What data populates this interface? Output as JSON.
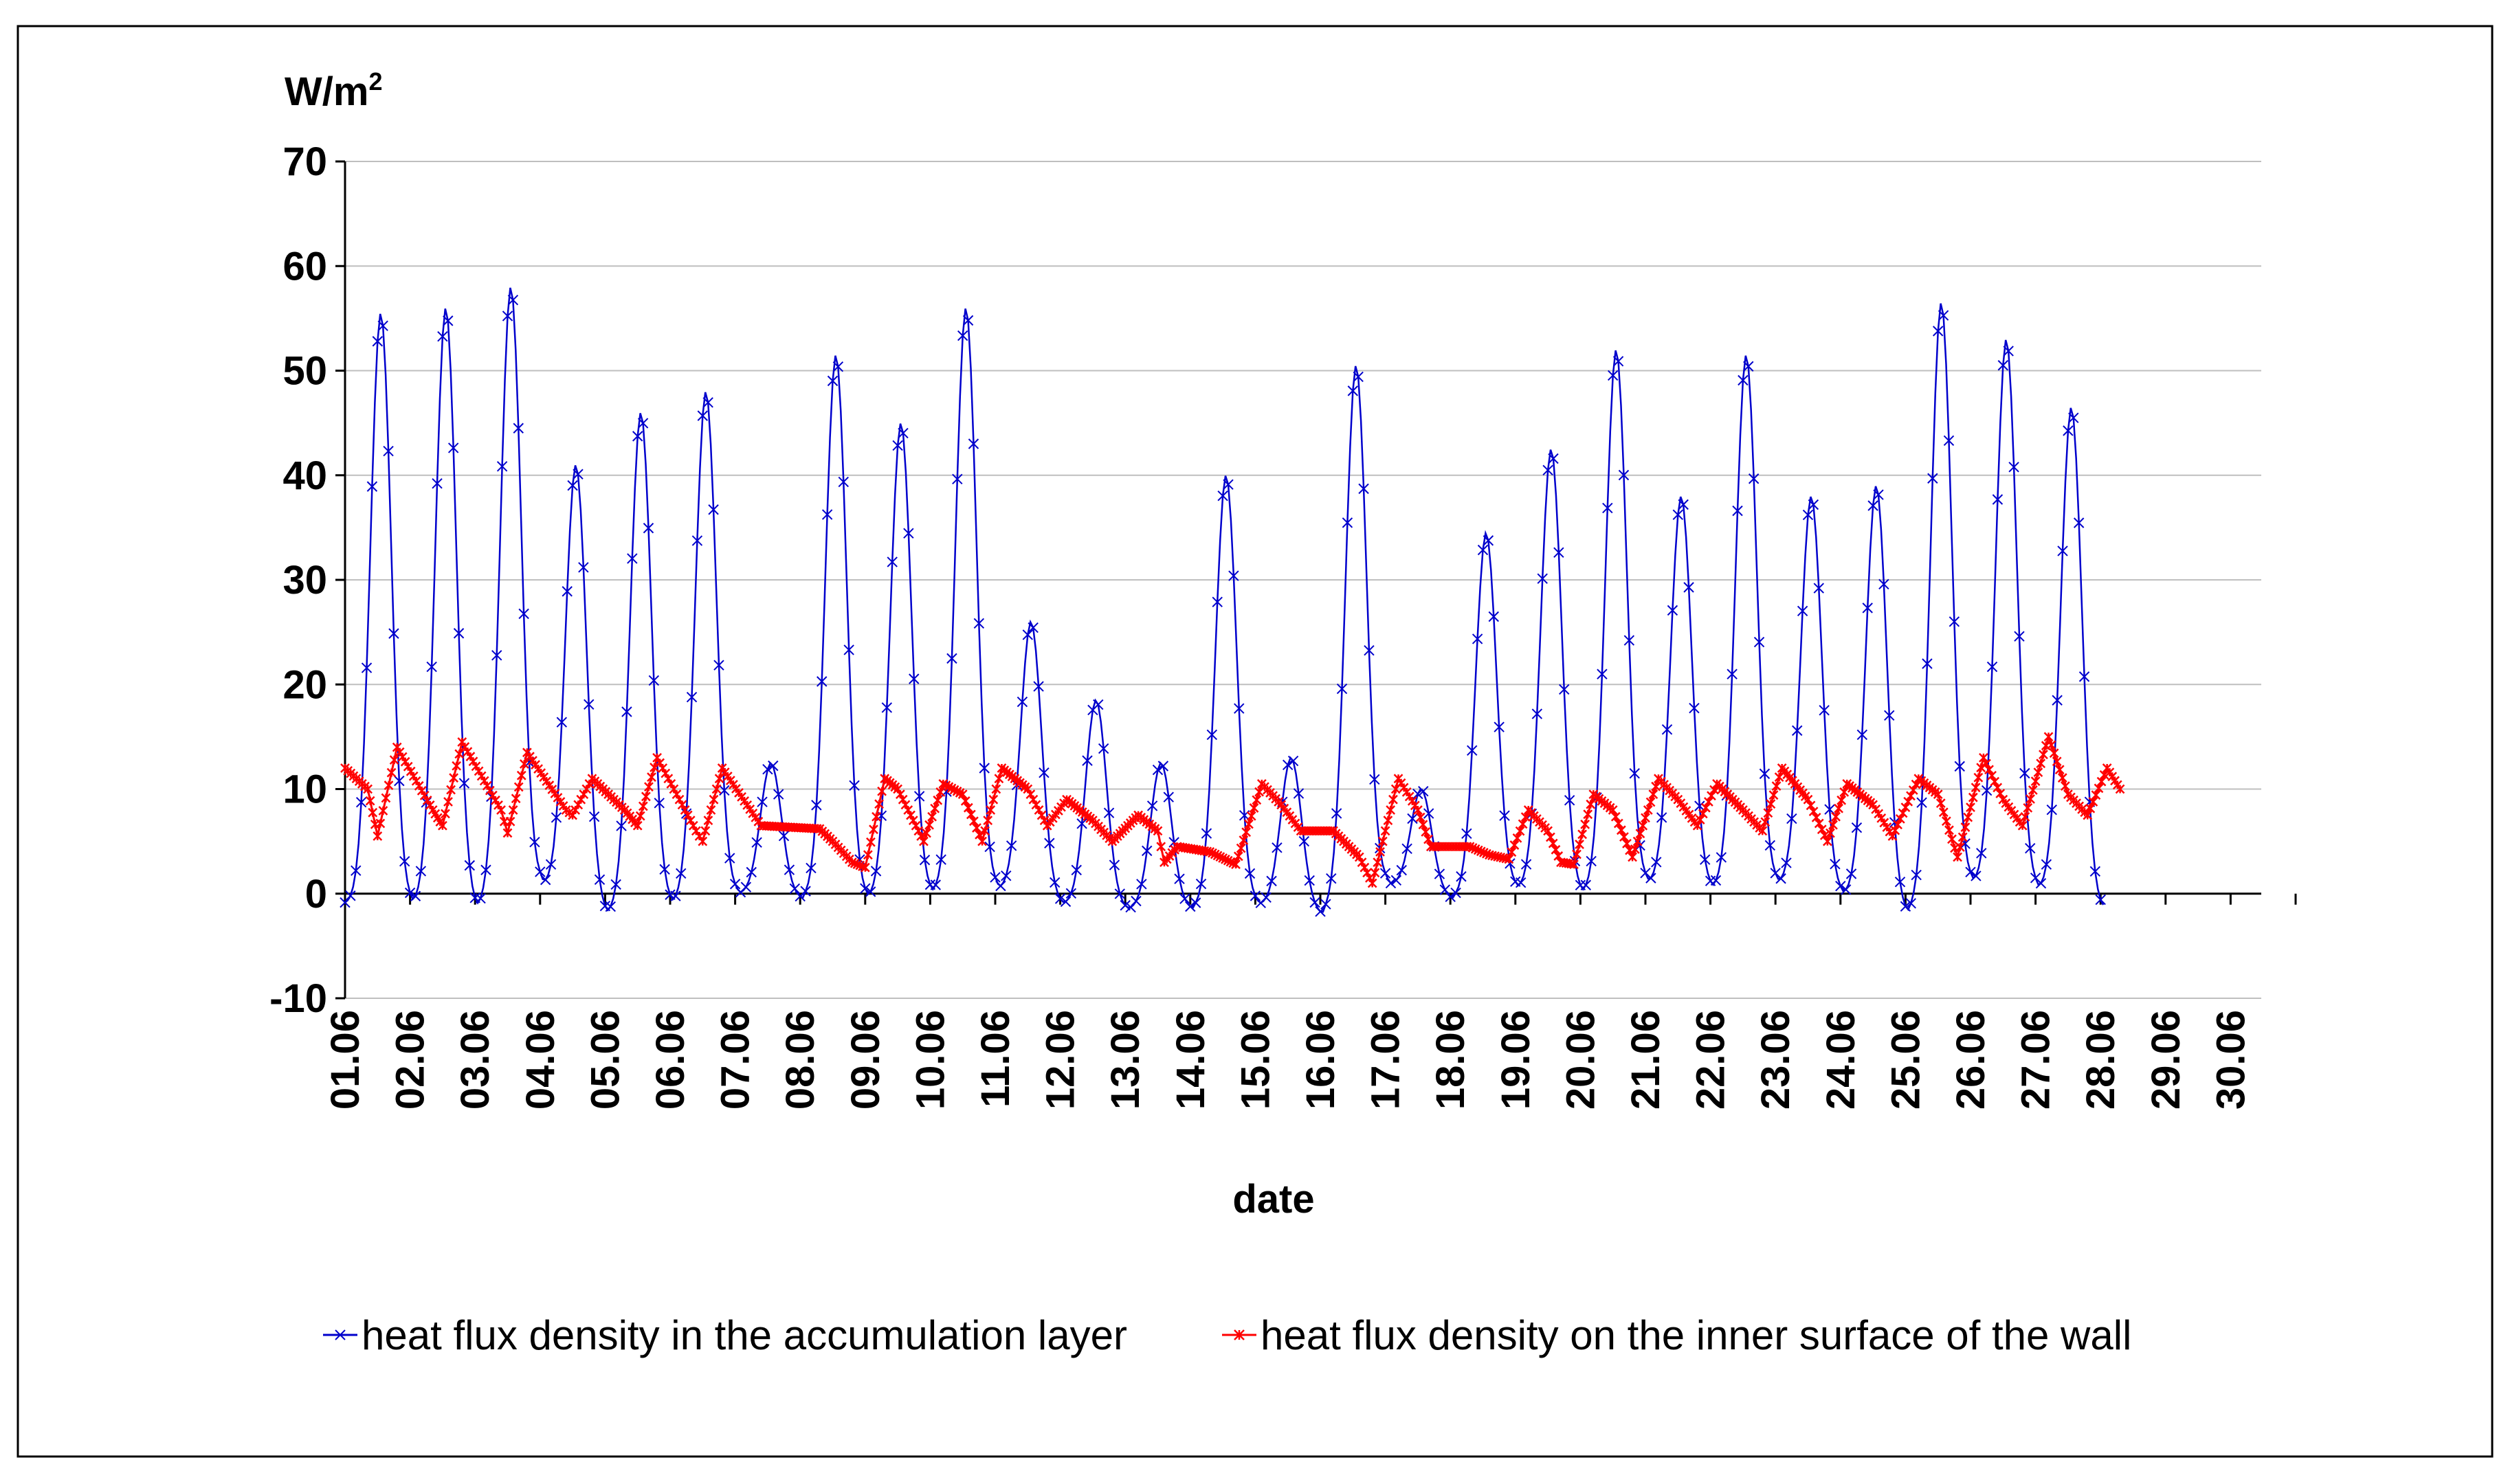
{
  "chart_data": {
    "type": "line",
    "y_unit_label": "W/m",
    "y_unit_superscript": "2",
    "xlabel": "date",
    "ylim": [
      -10,
      70
    ],
    "y_ticks": [
      70,
      60,
      50,
      40,
      30,
      20,
      10,
      0,
      -10
    ],
    "gridlines": "horizontal",
    "legend_position": "bottom",
    "categories": [
      "01.06",
      "02.06",
      "03.06",
      "04.06",
      "05.06",
      "06.06",
      "07.06",
      "08.06",
      "09.06",
      "10.06",
      "11.06",
      "12.06",
      "13.06",
      "14.06",
      "15.06",
      "16.06",
      "17.06",
      "18.06",
      "19.06",
      "20.06",
      "21.06",
      "22.06",
      "23.06",
      "24.06",
      "25.06",
      "26.06",
      "27.06",
      "28.06",
      "29.06",
      "30.06"
    ],
    "x_axis_end_day": 30,
    "series": [
      {
        "name": "heat flux density in the accumulation layer",
        "color": "#0000CC",
        "marker": "x",
        "daily_min": [
          -1,
          -1,
          -1.5,
          1,
          -2,
          -1,
          0,
          -0.5,
          -0.5,
          0,
          0.5,
          -1,
          -1.5,
          -1.5,
          -1,
          -2,
          1,
          -0.5,
          0.5,
          0,
          1,
          0.5,
          1,
          0,
          -2,
          1,
          0.5,
          -1.5
        ],
        "daily_peak": [
          55.5,
          56,
          58,
          41,
          46,
          48,
          12.5,
          51.5,
          45,
          56,
          26,
          18.5,
          12.5,
          40,
          13,
          50.5,
          10,
          34.5,
          42.5,
          52,
          38,
          51.5,
          38,
          39,
          56.5,
          53,
          46.5
        ],
        "peak_day_offset": 0.55
      },
      {
        "name": "heat flux density on the inner surface of the wall",
        "color": "#FF0000",
        "marker": "*",
        "points": [
          [
            0,
            12
          ],
          [
            0.35,
            10
          ],
          [
            0.5,
            5.5
          ],
          [
            0.8,
            14
          ],
          [
            1.35,
            8
          ],
          [
            1.5,
            6.5
          ],
          [
            1.8,
            14.5
          ],
          [
            2.4,
            8
          ],
          [
            2.5,
            5.8
          ],
          [
            2.8,
            13.5
          ],
          [
            3.4,
            8
          ],
          [
            3.5,
            7.5
          ],
          [
            3.8,
            11
          ],
          [
            4.3,
            8
          ],
          [
            4.5,
            6.5
          ],
          [
            4.8,
            13
          ],
          [
            5.4,
            6
          ],
          [
            5.5,
            5
          ],
          [
            5.8,
            12
          ],
          [
            6.4,
            6.5
          ],
          [
            7.3,
            6.2
          ],
          [
            7.5,
            5
          ],
          [
            7.8,
            3
          ],
          [
            8.0,
            2.5
          ],
          [
            8.3,
            11
          ],
          [
            8.5,
            10
          ],
          [
            8.9,
            5
          ],
          [
            9.2,
            10.5
          ],
          [
            9.5,
            9.5
          ],
          [
            9.8,
            5
          ],
          [
            10.1,
            12
          ],
          [
            10.5,
            10
          ],
          [
            10.8,
            6.5
          ],
          [
            11.1,
            9
          ],
          [
            11.5,
            7
          ],
          [
            11.8,
            5
          ],
          [
            12.2,
            7.5
          ],
          [
            12.5,
            6
          ],
          [
            12.6,
            3
          ],
          [
            12.8,
            4.5
          ],
          [
            13.3,
            4
          ],
          [
            13.7,
            2.8
          ],
          [
            14.1,
            10.5
          ],
          [
            14.4,
            8.5
          ],
          [
            14.7,
            6
          ],
          [
            15.2,
            6
          ],
          [
            15.6,
            3.5
          ],
          [
            15.8,
            1
          ],
          [
            16.2,
            11
          ],
          [
            16.5,
            8
          ],
          [
            16.7,
            4.5
          ],
          [
            17.3,
            4.5
          ],
          [
            17.6,
            3.7
          ],
          [
            17.9,
            3.3
          ],
          [
            18.2,
            8
          ],
          [
            18.5,
            6
          ],
          [
            18.7,
            3
          ],
          [
            18.9,
            2.8
          ],
          [
            19.2,
            9.5
          ],
          [
            19.5,
            8
          ],
          [
            19.8,
            3.5
          ],
          [
            20.2,
            11
          ],
          [
            20.5,
            9
          ],
          [
            20.8,
            6.5
          ],
          [
            21.1,
            10.5
          ],
          [
            21.5,
            8
          ],
          [
            21.8,
            6
          ],
          [
            22.1,
            12
          ],
          [
            22.5,
            9
          ],
          [
            22.8,
            5
          ],
          [
            23.1,
            10.5
          ],
          [
            23.5,
            8.5
          ],
          [
            23.8,
            5.5
          ],
          [
            24.2,
            11
          ],
          [
            24.5,
            9.5
          ],
          [
            24.8,
            3.5
          ],
          [
            25.2,
            13
          ],
          [
            25.5,
            9
          ],
          [
            25.8,
            6.5
          ],
          [
            26.2,
            15
          ],
          [
            26.5,
            9.5
          ],
          [
            26.8,
            7.5
          ],
          [
            27.1,
            12
          ],
          [
            27.3,
            10
          ]
        ]
      }
    ]
  }
}
